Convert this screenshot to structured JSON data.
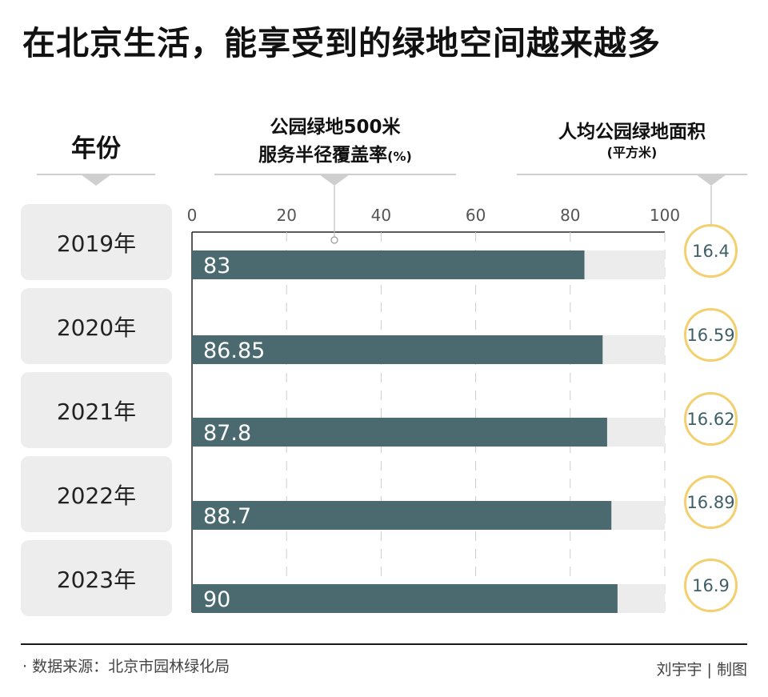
{
  "title": "在北京生活，能享受到的绿地空间越来越多",
  "headers": {
    "year": "年份",
    "coverage_line1": "公园绿地500米",
    "coverage_line2": "服务半径覆盖率",
    "coverage_unit": "(%)",
    "area_line1": "人均公园绿地面积",
    "area_unit": "(平方米)"
  },
  "years": [
    "2019年",
    "2020年",
    "2021年",
    "2022年",
    "2023年"
  ],
  "per_capita_area": [
    "16.4",
    "16.59",
    "16.62",
    "16.89",
    "16.9"
  ],
  "chart_data": {
    "type": "bar",
    "orientation": "horizontal",
    "categories": [
      "2019年",
      "2020年",
      "2021年",
      "2022年",
      "2023年"
    ],
    "values": [
      83,
      86.85,
      87.8,
      88.7,
      90
    ],
    "value_labels": [
      "83",
      "86.85",
      "87.8",
      "88.7",
      "90"
    ],
    "xlim": [
      0,
      100
    ],
    "ticks": [
      0,
      20,
      40,
      60,
      80,
      100
    ],
    "tick_labels": [
      "0",
      "20",
      "40",
      "60",
      "80",
      "100"
    ],
    "grid": true,
    "bar_color": "#4a6a70",
    "track_color": "#ececec"
  },
  "colors": {
    "circle_border": "#f3cf6e",
    "circle_text": "#3e5f67",
    "year_bg": "#ededed",
    "grid": "#cccccc"
  },
  "footer": {
    "source": "· 数据来源：北京市园林绿化局",
    "credit": "刘宇宇 | 制图"
  }
}
